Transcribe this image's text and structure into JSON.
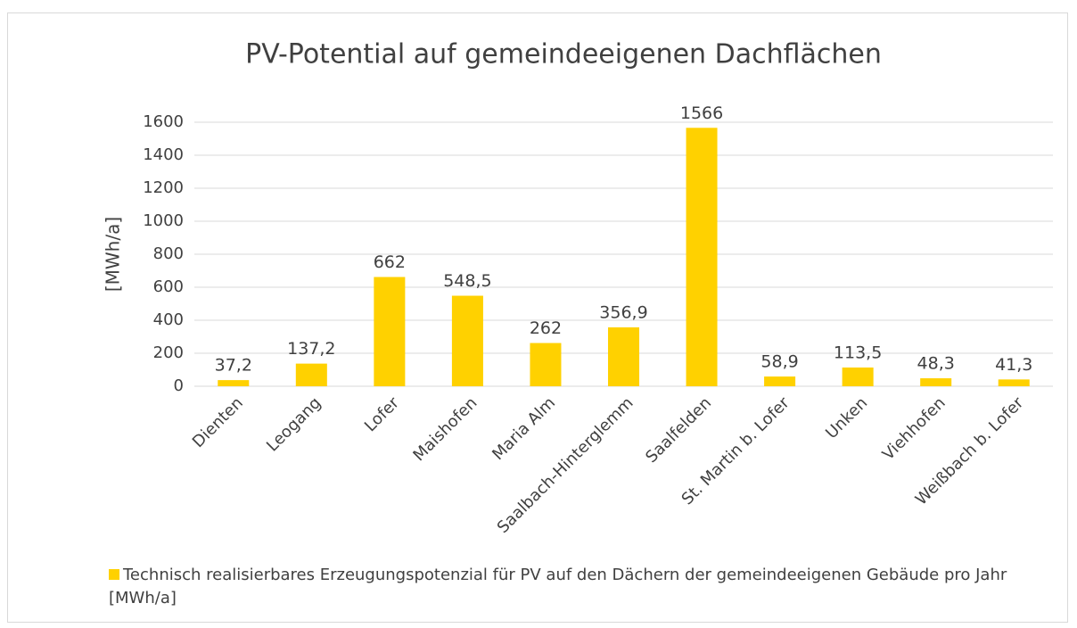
{
  "chart_data": {
    "type": "bar",
    "title": "PV-Potential auf gemeindeeigenen Dachflächen",
    "y_label": "[MWh/a]",
    "categories": [
      "Dienten",
      "Leogang",
      "Lofer",
      "Maishofen",
      "Maria Alm",
      "Saalbach-Hinterglemm",
      "Saalfelden",
      "St. Martin b. Lofer",
      "Unken",
      "Viehhofen",
      "Weißbach b. Lofer"
    ],
    "series": [
      {
        "name": "Technisch realisierbares Erzeugungspotenzial für PV auf den Dächern der gemeindeeigenen Gebäude pro Jahr [MWh/a]",
        "color": "#ffd100",
        "values": [
          37.2,
          137.2,
          662,
          548.5,
          262,
          356.9,
          1566,
          58.9,
          113.5,
          48.3,
          41.3
        ],
        "value_labels": [
          "37,2",
          "137,2",
          "662",
          "548,5",
          "262",
          "356,9",
          "1566",
          "58,9",
          "113,5",
          "48,3",
          "41,3"
        ]
      }
    ],
    "ylim": [
      0,
      1600
    ],
    "yticks": [
      0,
      200,
      400,
      600,
      800,
      1000,
      1200,
      1400,
      1600
    ],
    "grid": true,
    "legend": "bottom"
  }
}
